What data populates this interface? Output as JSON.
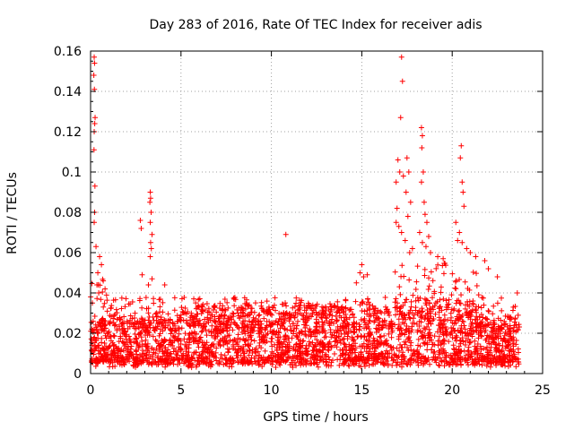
{
  "chart_data": {
    "type": "scatter",
    "title": "Day 283 of 2016, Rate Of TEC Index for receiver adis",
    "xlabel": "GPS time / hours",
    "ylabel": "ROTI / TECUs",
    "xlim": [
      0,
      25
    ],
    "ylim": [
      0,
      0.16
    ],
    "xticks": [
      0,
      5,
      10,
      15,
      20,
      25
    ],
    "yticks": [
      0,
      0.02,
      0.04,
      0.06,
      0.08,
      0.1,
      0.12,
      0.14,
      0.16
    ],
    "xtick_labels": [
      "0",
      "5",
      "10",
      "15",
      "20",
      "25"
    ],
    "ytick_labels": [
      "0",
      "0.02",
      "0.04",
      "0.06",
      "0.08",
      "0.1",
      "0.12",
      "0.14",
      "0.16"
    ],
    "grid": true,
    "marker": "+",
    "color": "#ff0000",
    "data_extent_x": [
      0,
      23.75
    ],
    "baseline_band": {
      "min": 0.003,
      "max": 0.025
    },
    "series": [
      {
        "name": "ROTI",
        "points": [
          [
            0.2,
            0.157
          ],
          [
            0.22,
            0.154
          ],
          [
            0.18,
            0.148
          ],
          [
            0.21,
            0.141
          ],
          [
            0.25,
            0.127
          ],
          [
            0.23,
            0.124
          ],
          [
            0.2,
            0.12
          ],
          [
            0.19,
            0.111
          ],
          [
            0.24,
            0.093
          ],
          [
            0.22,
            0.08
          ],
          [
            0.2,
            0.075
          ],
          [
            0.3,
            0.063
          ],
          [
            0.5,
            0.058
          ],
          [
            0.6,
            0.054
          ],
          [
            0.4,
            0.05
          ],
          [
            0.7,
            0.046
          ],
          [
            0.35,
            0.044
          ],
          [
            0.45,
            0.04
          ],
          [
            0.8,
            0.042
          ],
          [
            0.1,
            0.035
          ],
          [
            2.75,
            0.076
          ],
          [
            2.8,
            0.072
          ],
          [
            2.85,
            0.049
          ],
          [
            3.3,
            0.09
          ],
          [
            3.32,
            0.087
          ],
          [
            3.28,
            0.085
          ],
          [
            3.35,
            0.08
          ],
          [
            3.3,
            0.075
          ],
          [
            3.4,
            0.069
          ],
          [
            3.32,
            0.065
          ],
          [
            3.36,
            0.062
          ],
          [
            3.3,
            0.058
          ],
          [
            3.4,
            0.047
          ],
          [
            3.2,
            0.044
          ],
          [
            4.1,
            0.044
          ],
          [
            10.8,
            0.069
          ],
          [
            15.0,
            0.054
          ],
          [
            14.9,
            0.05
          ],
          [
            15.1,
            0.048
          ],
          [
            15.3,
            0.049
          ],
          [
            14.7,
            0.045
          ],
          [
            17.2,
            0.157
          ],
          [
            17.25,
            0.145
          ],
          [
            17.15,
            0.127
          ],
          [
            17.0,
            0.106
          ],
          [
            17.1,
            0.1
          ],
          [
            16.9,
            0.095
          ],
          [
            17.3,
            0.098
          ],
          [
            17.5,
            0.107
          ],
          [
            17.6,
            0.1
          ],
          [
            17.45,
            0.09
          ],
          [
            17.7,
            0.085
          ],
          [
            17.55,
            0.078
          ],
          [
            16.95,
            0.082
          ],
          [
            17.05,
            0.073
          ],
          [
            17.2,
            0.07
          ],
          [
            17.4,
            0.066
          ],
          [
            17.8,
            0.062
          ],
          [
            16.9,
            0.075
          ],
          [
            17.65,
            0.06
          ],
          [
            18.3,
            0.122
          ],
          [
            18.35,
            0.118
          ],
          [
            18.32,
            0.112
          ],
          [
            18.4,
            0.1
          ],
          [
            18.3,
            0.095
          ],
          [
            18.45,
            0.085
          ],
          [
            18.5,
            0.079
          ],
          [
            18.6,
            0.075
          ],
          [
            18.2,
            0.07
          ],
          [
            18.7,
            0.068
          ],
          [
            18.35,
            0.065
          ],
          [
            18.55,
            0.063
          ],
          [
            18.8,
            0.06
          ],
          [
            19.2,
            0.058
          ],
          [
            19.5,
            0.057
          ],
          [
            20.5,
            0.113
          ],
          [
            20.45,
            0.107
          ],
          [
            20.55,
            0.095
          ],
          [
            20.6,
            0.09
          ],
          [
            20.65,
            0.083
          ],
          [
            20.2,
            0.075
          ],
          [
            20.4,
            0.07
          ],
          [
            20.55,
            0.065
          ],
          [
            20.8,
            0.062
          ],
          [
            20.3,
            0.066
          ],
          [
            21.0,
            0.06
          ],
          [
            21.3,
            0.058
          ],
          [
            21.8,
            0.056
          ],
          [
            22.0,
            0.052
          ],
          [
            22.5,
            0.048
          ],
          [
            23.6,
            0.04
          ]
        ]
      }
    ]
  }
}
